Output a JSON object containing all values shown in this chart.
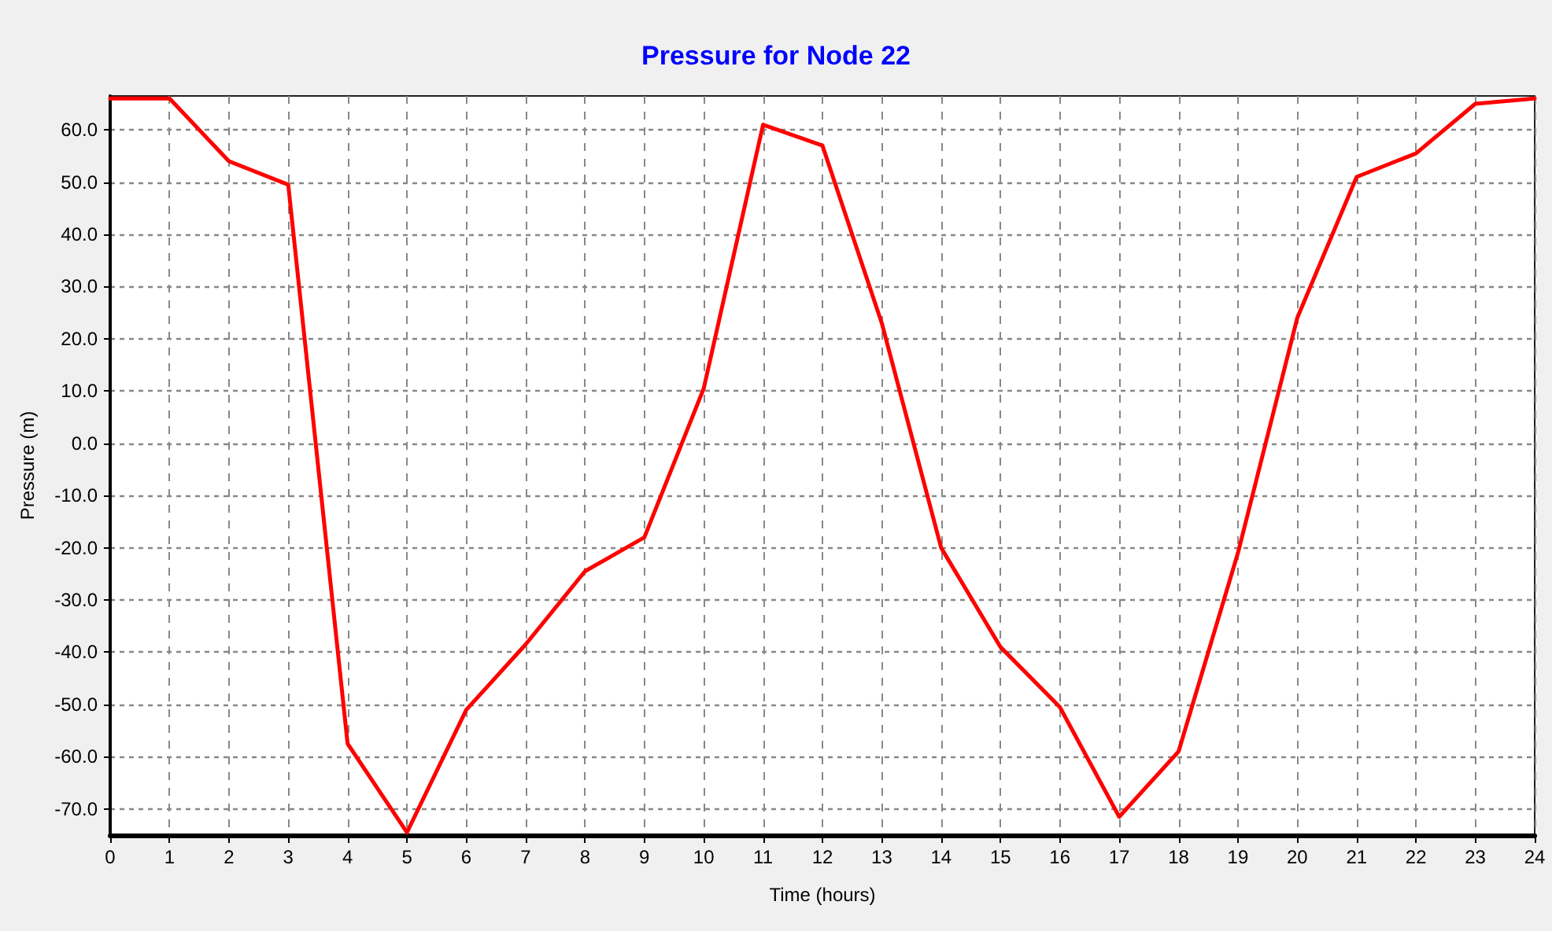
{
  "chart_data": {
    "type": "line",
    "title": "Pressure for Node 22",
    "xlabel": "Time (hours)",
    "ylabel": "Pressure (m)",
    "x": [
      0,
      1,
      2,
      3,
      4,
      5,
      6,
      7,
      8,
      9,
      10,
      11,
      12,
      13,
      14,
      15,
      16,
      17,
      18,
      19,
      20,
      21,
      22,
      23,
      24
    ],
    "series": [
      {
        "color": "#ff0000",
        "values": [
          66,
          66,
          54,
          49.5,
          -57.5,
          -74.5,
          -51,
          -38.5,
          -24.5,
          -18,
          10.5,
          61,
          57,
          23,
          -20,
          -39,
          -50.5,
          -71.5,
          -59,
          -21,
          24,
          51,
          55.5,
          65,
          66
        ]
      }
    ],
    "xlim": [
      0,
      24
    ],
    "xticks": [
      0,
      1,
      2,
      3,
      4,
      5,
      6,
      7,
      8,
      9,
      10,
      11,
      12,
      13,
      14,
      15,
      16,
      17,
      18,
      19,
      20,
      21,
      22,
      23,
      24
    ],
    "ylim": [
      -75,
      66.5
    ],
    "yticks": [
      {
        "value": -70,
        "label": "-70.0"
      },
      {
        "value": -60,
        "label": "-60.0"
      },
      {
        "value": -50,
        "label": "-50.0"
      },
      {
        "value": -40,
        "label": "-40.0"
      },
      {
        "value": -30,
        "label": "-30.0"
      },
      {
        "value": -20,
        "label": "-20.0"
      },
      {
        "value": -10,
        "label": "-10.0"
      },
      {
        "value": 0,
        "label": "0.0"
      },
      {
        "value": 10,
        "label": "10.0"
      },
      {
        "value": 20,
        "label": "20.0"
      },
      {
        "value": 30,
        "label": "30.0"
      },
      {
        "value": 40,
        "label": "40.0"
      },
      {
        "value": 50,
        "label": "50.0"
      },
      {
        "value": 60,
        "label": "60.0"
      }
    ],
    "grid": true,
    "marker": "none",
    "line_style": "solid"
  }
}
